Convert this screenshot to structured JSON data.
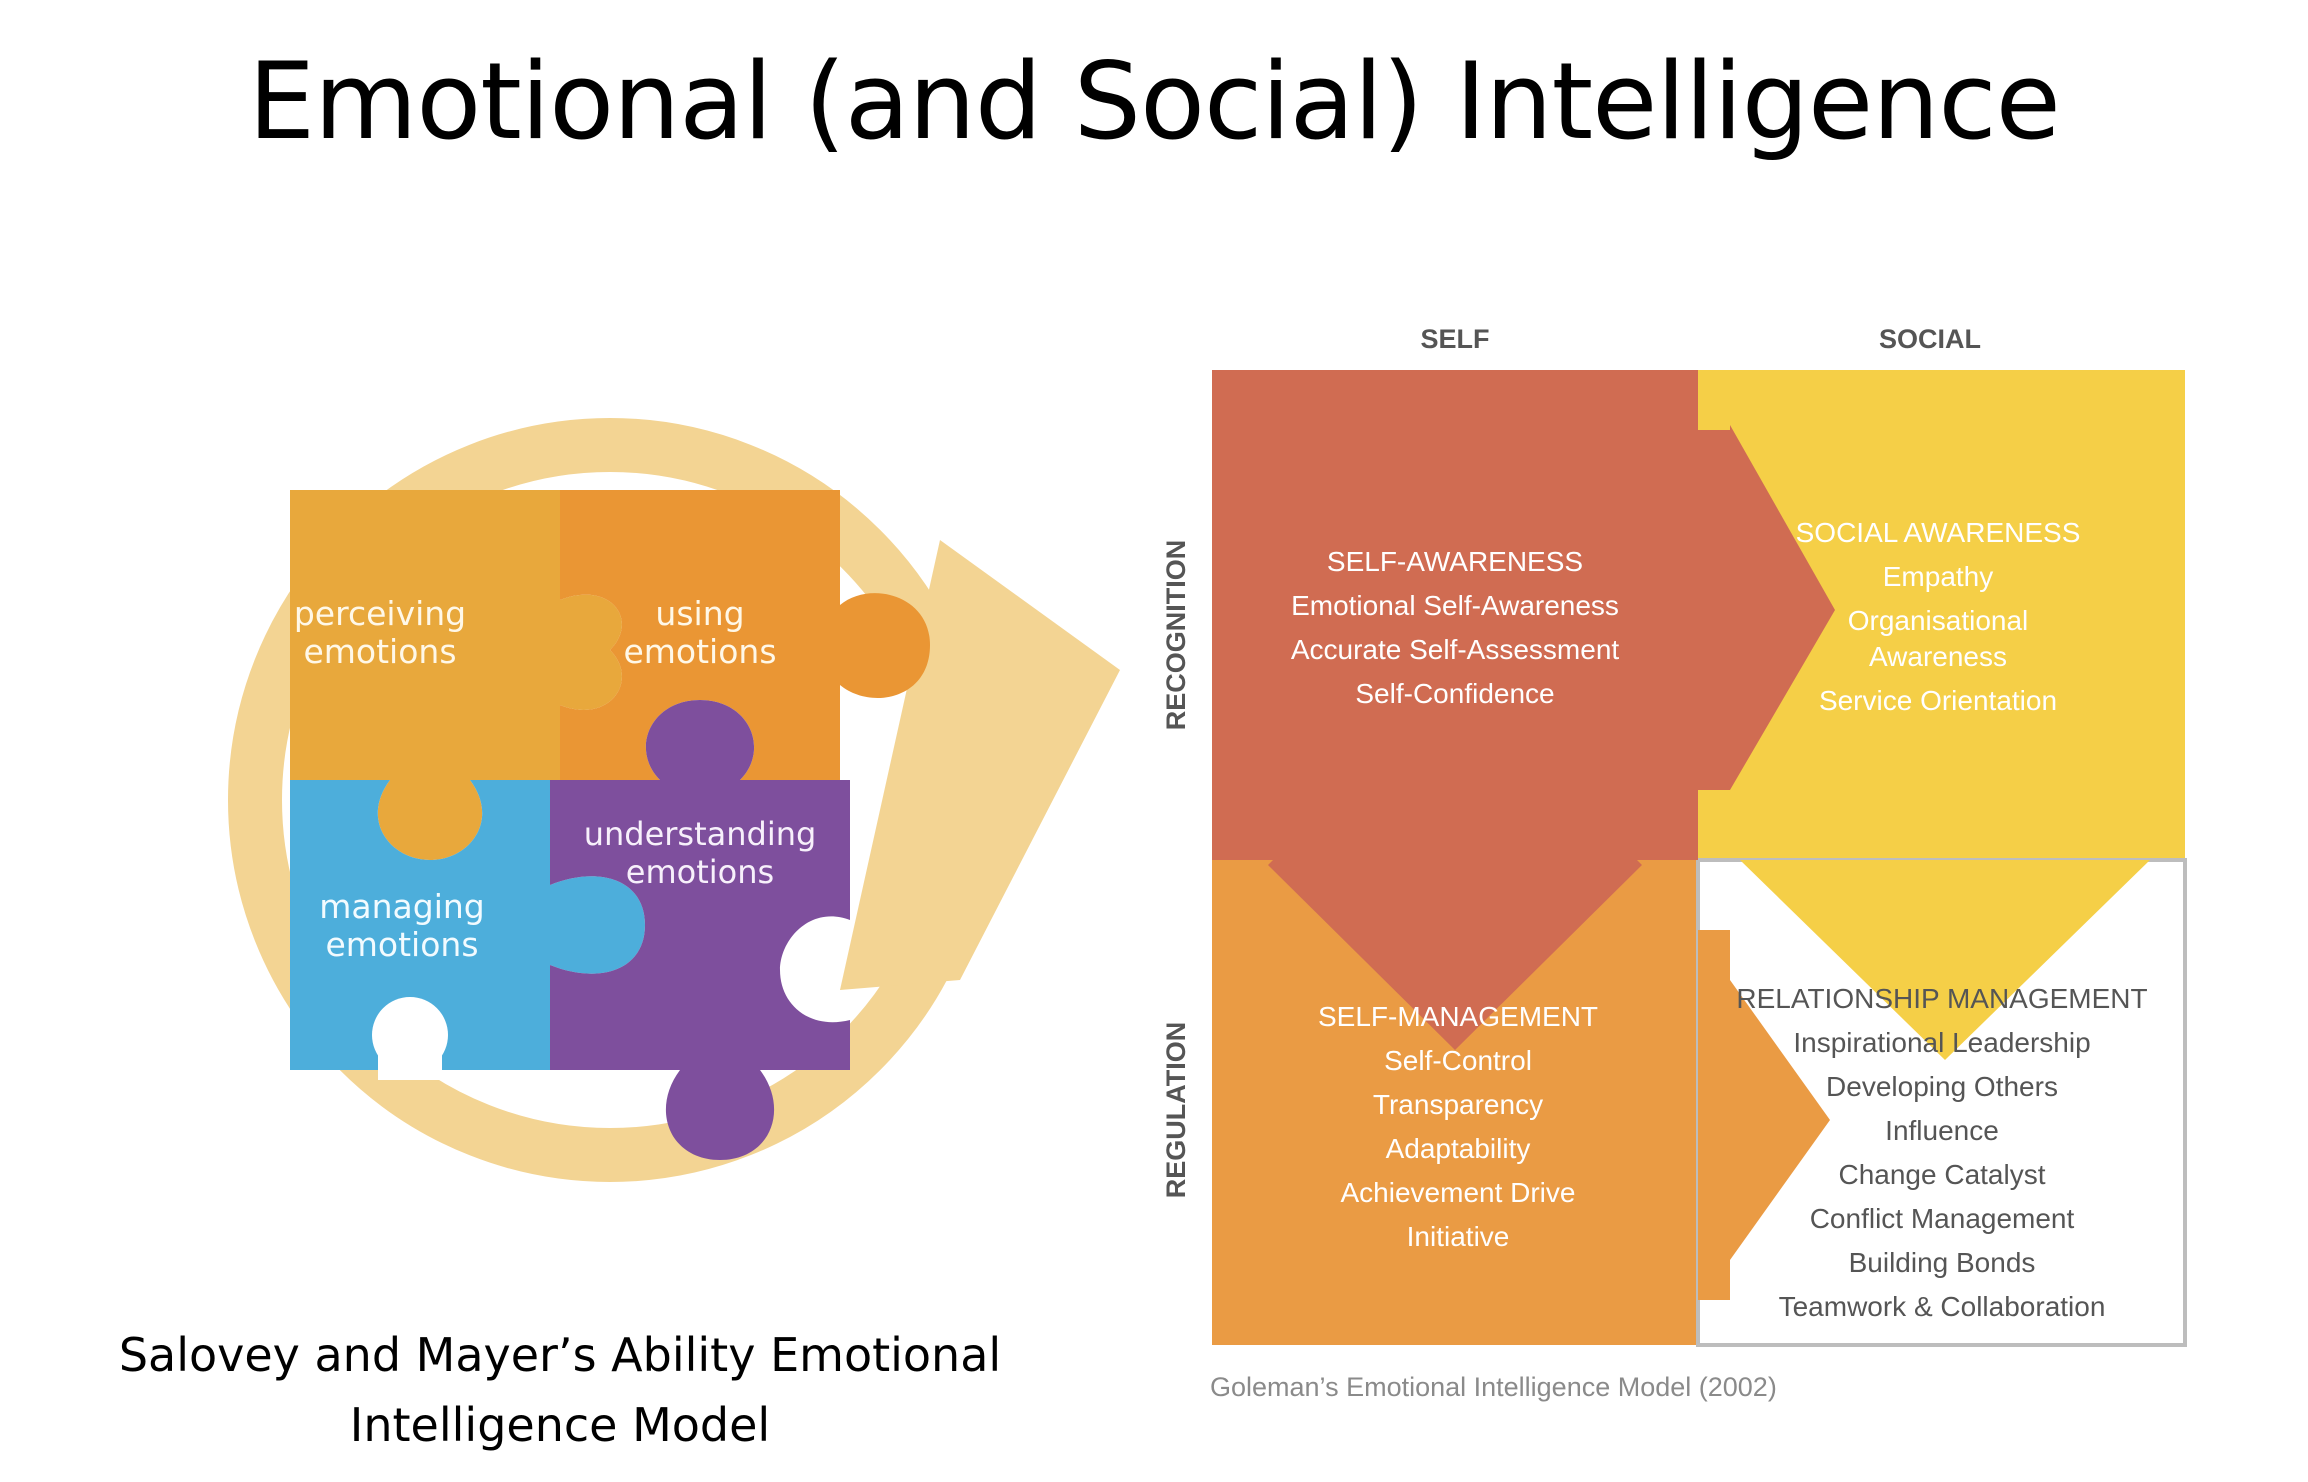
{
  "slide": {
    "title": "Emotional (and Social) Intelligence"
  },
  "salovey_mayer": {
    "pieces": {
      "perceiving": [
        "perceiving",
        "emotions"
      ],
      "using": [
        "using",
        "emotions"
      ],
      "managing": [
        "managing",
        "emotions"
      ],
      "understanding": [
        "understanding",
        "emotions"
      ]
    },
    "caption": [
      "Salovey and Mayer’s Ability Emotional",
      "Intelligence Model"
    ],
    "colors": {
      "perceiving": "#E8A83C",
      "using": "#EA9634",
      "managing": "#4DAEDB",
      "understanding": "#7E4F9D",
      "ring": "#F3D493"
    }
  },
  "goleman": {
    "column_headers": {
      "self": "SELF",
      "social": "SOCIAL"
    },
    "row_headers": {
      "recognition": "RECOGNITION",
      "regulation": "REGULATION"
    },
    "quadrants": {
      "self_awareness": {
        "title": "SELF-AWARENESS",
        "items": [
          "Emotional Self-Awareness",
          "Accurate Self-Assessment",
          "Self-Confidence"
        ]
      },
      "social_awareness": {
        "title": "SOCIAL AWARENESS",
        "items": [
          "Empathy",
          "Organisational",
          "Awareness",
          "Service Orientation"
        ]
      },
      "self_management": {
        "title": "SELF-MANAGEMENT",
        "items": [
          "Self-Control",
          "Transparency",
          "Adaptability",
          "Achievement Drive",
          "Initiative"
        ]
      },
      "relationship_management": {
        "title": "RELATIONSHIP MANAGEMENT",
        "items": [
          "Inspirational Leadership",
          "Developing Others",
          "Influence",
          "Change Catalyst",
          "Conflict Management",
          "Building Bonds",
          "Teamwork & Collaboration"
        ]
      }
    },
    "caption": "Goleman’s Emotional Intelligence Model (2002)",
    "colors": {
      "self_awareness": "#D06C52",
      "social_awareness": "#F5CF47",
      "self_management": "#EA9B44",
      "relationship_management": "#FFFFFF",
      "border": "#BDBDBD"
    }
  }
}
